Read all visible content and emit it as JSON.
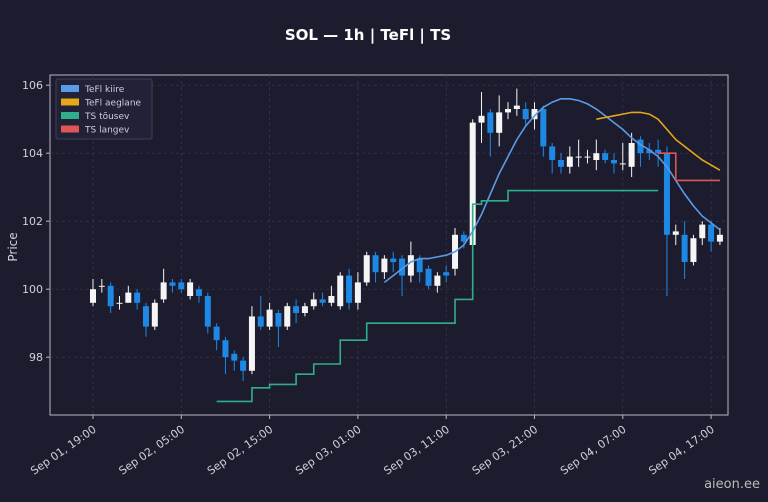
{
  "chart_data": {
    "type": "candlestick",
    "title": "SOL — 1h  |  TeFl  |  TS",
    "ylabel": "Price",
    "watermark": "aieon.ee",
    "categories": [
      "Sep 01, 19:00",
      null,
      null,
      null,
      null,
      null,
      null,
      null,
      null,
      null,
      "Sep 02, 05:00",
      null,
      null,
      null,
      null,
      null,
      null,
      null,
      null,
      null,
      "Sep 02, 15:00",
      null,
      null,
      null,
      null,
      null,
      null,
      null,
      null,
      null,
      "Sep 03, 01:00",
      null,
      null,
      null,
      null,
      null,
      null,
      null,
      null,
      null,
      "Sep 03, 11:00",
      null,
      null,
      null,
      null,
      null,
      null,
      null,
      null,
      null,
      "Sep 03, 21:00",
      null,
      null,
      null,
      null,
      null,
      null,
      null,
      null,
      null,
      "Sep 04, 07:00",
      null,
      null,
      null,
      null,
      null,
      null,
      null,
      null,
      null,
      "Sep 04, 17:00",
      null
    ],
    "candles": {
      "up_color": "#f5f5f5",
      "down_color": "#1e88e5",
      "open": [
        99.6,
        100.1,
        100.1,
        99.6,
        99.6,
        99.9,
        99.5,
        98.9,
        99.7,
        100.2,
        100.2,
        99.8,
        100.0,
        99.8,
        98.9,
        98.5,
        98.1,
        97.9,
        97.6,
        99.2,
        98.9,
        99.3,
        98.9,
        99.5,
        99.3,
        99.5,
        99.7,
        99.6,
        99.5,
        100.4,
        99.6,
        100.2,
        101.0,
        100.5,
        100.9,
        100.9,
        100.4,
        100.9,
        100.6,
        100.1,
        100.5,
        100.6,
        101.6,
        101.3,
        104.9,
        105.2,
        104.6,
        105.2,
        105.3,
        105.3,
        105.0,
        105.3,
        104.2,
        103.8,
        103.6,
        103.9,
        103.9,
        103.8,
        104.0,
        103.8,
        103.7,
        103.6,
        104.4,
        104.1,
        104.1,
        104.0,
        101.6,
        101.6,
        100.8,
        101.5,
        101.9,
        101.4
      ],
      "high": [
        100.3,
        100.3,
        100.2,
        99.8,
        100.1,
        100.0,
        99.6,
        99.7,
        100.6,
        100.3,
        100.3,
        100.3,
        100.1,
        99.9,
        99.0,
        98.6,
        98.2,
        98.0,
        99.5,
        99.8,
        99.6,
        99.4,
        99.6,
        99.7,
        99.6,
        99.9,
        99.9,
        100.1,
        100.5,
        100.6,
        100.5,
        101.1,
        101.1,
        101.0,
        101.1,
        101.0,
        101.4,
        101.0,
        100.7,
        100.5,
        100.7,
        101.8,
        101.7,
        105.0,
        105.8,
        105.3,
        105.7,
        105.5,
        105.9,
        105.5,
        105.5,
        105.4,
        104.3,
        104.0,
        104.2,
        104.4,
        104.1,
        104.4,
        104.1,
        104.0,
        104.3,
        104.6,
        104.5,
        104.3,
        104.4,
        104.2,
        101.9,
        102.0,
        101.6,
        102.0,
        102.0,
        101.8
      ],
      "low": [
        99.5,
        99.9,
        99.3,
        99.4,
        99.7,
        99.4,
        98.6,
        98.8,
        99.6,
        99.9,
        99.9,
        99.7,
        99.6,
        98.7,
        98.2,
        97.5,
        97.6,
        97.3,
        97.5,
        98.8,
        98.8,
        98.3,
        98.8,
        99.0,
        99.2,
        99.4,
        99.5,
        99.5,
        99.4,
        99.4,
        99.4,
        100.1,
        100.2,
        100.3,
        100.5,
        99.8,
        100.2,
        100.2,
        100.0,
        99.9,
        100.2,
        100.4,
        101.2,
        101.1,
        104.3,
        103.9,
        104.2,
        105.0,
        105.1,
        104.8,
        104.7,
        103.9,
        103.4,
        103.4,
        103.4,
        103.6,
        103.7,
        103.5,
        103.7,
        103.4,
        103.5,
        103.3,
        103.6,
        103.8,
        103.6,
        99.8,
        101.3,
        100.3,
        100.7,
        101.3,
        101.1,
        101.3
      ],
      "close": [
        100.0,
        100.1,
        99.5,
        99.6,
        99.9,
        99.6,
        98.9,
        99.6,
        100.2,
        100.1,
        100.0,
        100.2,
        99.8,
        98.9,
        98.5,
        98.0,
        97.9,
        97.6,
        99.2,
        98.9,
        99.4,
        98.9,
        99.5,
        99.3,
        99.5,
        99.7,
        99.6,
        99.8,
        100.4,
        99.6,
        100.2,
        101.0,
        100.5,
        100.9,
        100.8,
        100.4,
        101.0,
        100.5,
        100.1,
        100.4,
        100.4,
        101.6,
        101.4,
        104.9,
        105.1,
        104.6,
        105.2,
        105.3,
        105.4,
        105.0,
        105.3,
        104.2,
        103.8,
        103.6,
        103.9,
        103.9,
        103.9,
        104.0,
        103.8,
        103.7,
        103.7,
        104.3,
        104.0,
        104.0,
        104.0,
        101.6,
        101.7,
        100.8,
        101.5,
        101.9,
        101.4,
        101.6
      ]
    },
    "series": [
      {
        "name": "TeFl kiire",
        "color": "#5a9be6",
        "step": false,
        "values": [
          null,
          null,
          null,
          null,
          null,
          null,
          null,
          null,
          null,
          null,
          null,
          null,
          null,
          null,
          null,
          null,
          null,
          null,
          null,
          null,
          null,
          null,
          null,
          null,
          null,
          null,
          null,
          null,
          null,
          null,
          null,
          null,
          null,
          100.2,
          100.4,
          100.6,
          100.8,
          100.9,
          100.9,
          100.95,
          101.0,
          101.1,
          101.3,
          101.7,
          102.2,
          102.8,
          103.4,
          103.9,
          104.4,
          104.8,
          105.1,
          105.35,
          105.5,
          105.6,
          105.6,
          105.55,
          105.45,
          105.3,
          105.1,
          104.9,
          104.7,
          104.45,
          104.25,
          104.1,
          103.9,
          103.6,
          103.2,
          102.8,
          102.45,
          102.15,
          101.95,
          101.75
        ]
      },
      {
        "name": "TeFl aeglane",
        "color": "#e6a817",
        "step": false,
        "values": [
          null,
          null,
          null,
          null,
          null,
          null,
          null,
          null,
          null,
          null,
          null,
          null,
          null,
          null,
          null,
          null,
          null,
          null,
          null,
          null,
          null,
          null,
          null,
          null,
          null,
          null,
          null,
          null,
          null,
          null,
          null,
          null,
          null,
          null,
          null,
          null,
          null,
          null,
          null,
          null,
          null,
          null,
          null,
          null,
          null,
          null,
          null,
          null,
          null,
          null,
          null,
          null,
          null,
          null,
          null,
          null,
          null,
          105.0,
          105.05,
          105.1,
          105.15,
          105.2,
          105.2,
          105.15,
          105.0,
          104.7,
          104.4,
          104.2,
          104.0,
          103.8,
          103.65,
          103.5
        ]
      },
      {
        "name": "TS tõusev",
        "color": "#2fae8c",
        "step": true,
        "values": [
          null,
          null,
          null,
          null,
          null,
          null,
          null,
          null,
          null,
          null,
          null,
          null,
          null,
          null,
          96.7,
          96.7,
          96.7,
          96.7,
          97.1,
          97.1,
          97.2,
          97.2,
          97.2,
          97.5,
          97.5,
          97.8,
          97.8,
          97.8,
          98.5,
          98.5,
          98.5,
          99.0,
          99.0,
          99.0,
          99.0,
          99.0,
          99.0,
          99.0,
          99.0,
          99.0,
          99.0,
          99.7,
          99.7,
          102.5,
          102.6,
          102.6,
          102.6,
          102.9,
          102.9,
          102.9,
          102.9,
          102.9,
          102.9,
          102.9,
          102.9,
          102.9,
          102.9,
          102.9,
          102.9,
          102.9,
          102.9,
          102.9,
          102.9,
          102.9,
          102.9,
          null,
          null,
          null,
          null,
          null,
          null,
          null
        ]
      },
      {
        "name": "TS langev",
        "color": "#e05555",
        "step": true,
        "values": [
          null,
          null,
          null,
          null,
          null,
          null,
          null,
          null,
          null,
          null,
          null,
          null,
          null,
          null,
          null,
          null,
          null,
          null,
          null,
          null,
          null,
          null,
          null,
          null,
          null,
          null,
          null,
          null,
          null,
          null,
          null,
          null,
          null,
          null,
          null,
          null,
          null,
          null,
          null,
          null,
          null,
          null,
          null,
          null,
          null,
          null,
          null,
          null,
          null,
          null,
          null,
          null,
          null,
          null,
          null,
          null,
          null,
          null,
          null,
          null,
          null,
          null,
          null,
          null,
          104.0,
          104.0,
          103.2,
          103.2,
          103.2,
          103.2,
          103.2,
          103.2
        ]
      }
    ],
    "ylim": [
      96.3,
      106.3
    ],
    "yticks": [
      98,
      100,
      102,
      104,
      106
    ],
    "grid": true,
    "legend": "upper left"
  }
}
